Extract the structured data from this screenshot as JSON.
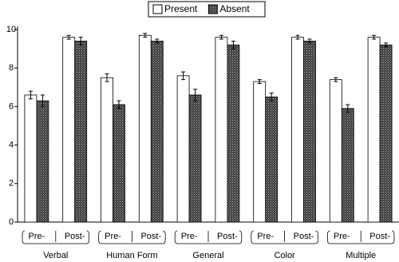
{
  "chart_data": {
    "type": "bar",
    "categories": [
      "Pre-",
      "Post-",
      "Pre-",
      "Post-",
      "Pre-",
      "Post-",
      "Pre-",
      "Post-",
      "Pre-",
      "Post-"
    ],
    "groups": [
      "Verbal",
      "Human Form",
      "General",
      "Color",
      "Multiple"
    ],
    "series": [
      {
        "name": "Present",
        "color": "#ffffff",
        "values": [
          6.6,
          9.6,
          7.5,
          9.7,
          7.6,
          9.6,
          7.3,
          9.6,
          7.4,
          9.6
        ],
        "errors": [
          0.2,
          0.1,
          0.2,
          0.1,
          0.2,
          0.1,
          0.1,
          0.1,
          0.1,
          0.1
        ]
      },
      {
        "name": "Absent",
        "color": "#3a3a3a",
        "values": [
          6.3,
          9.4,
          6.1,
          9.4,
          6.6,
          9.2,
          6.5,
          9.4,
          5.9,
          9.2
        ],
        "errors": [
          0.3,
          0.2,
          0.2,
          0.1,
          0.3,
          0.2,
          0.2,
          0.1,
          0.2,
          0.1
        ]
      }
    ],
    "ylim": [
      0,
      10
    ],
    "yticks": [
      0,
      2,
      4,
      6,
      8,
      10
    ],
    "grid": false
  }
}
